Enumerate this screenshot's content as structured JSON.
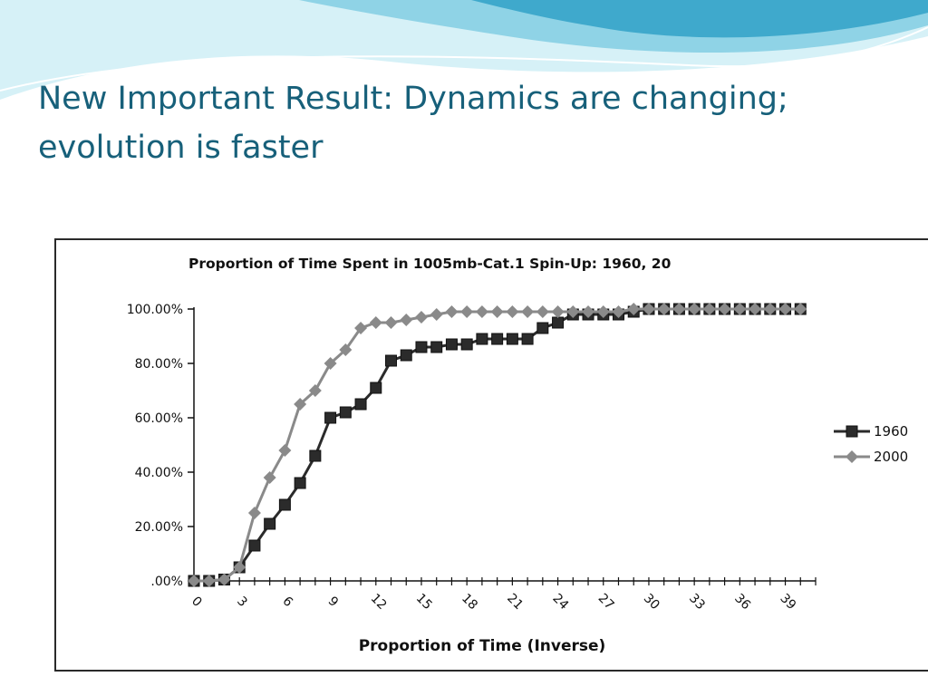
{
  "slide": {
    "title_line1": "New Important Result:  Dynamics are changing;",
    "title_line2": "evolution is faster"
  },
  "colors": {
    "title": "#17607a",
    "banner_light": "#d6f1f7",
    "banner_mid": "#8fd3e6",
    "banner_dark": "#3fa9cc",
    "series_1960": "#2b2b2b",
    "series_2000": "#8a8a8a"
  },
  "chart_data": {
    "type": "line",
    "title": "Proportion of Time Spent in 1005mb-Cat.1 Spin-Up: 1960, 20",
    "xlabel": "Proportion of Time (Inverse)",
    "ylabel": "",
    "xlim": [
      0,
      41
    ],
    "ylim": [
      0,
      100
    ],
    "x_ticks": [
      "0",
      "3",
      "6",
      "9",
      "12",
      "15",
      "18",
      "21",
      "24",
      "27",
      "30",
      "33",
      "36",
      "39"
    ],
    "y_ticks": [
      ".00%",
      "20.00%",
      "40.00%",
      "60.00%",
      "80.00%",
      "100.00%"
    ],
    "legend_position": "right",
    "grid": false,
    "x": [
      0,
      1,
      2,
      3,
      4,
      5,
      6,
      7,
      8,
      9,
      10,
      11,
      12,
      13,
      14,
      15,
      16,
      17,
      18,
      19,
      20,
      21,
      22,
      23,
      24,
      25,
      26,
      27,
      28,
      29,
      30,
      31,
      32,
      33,
      34,
      35,
      36,
      37,
      38,
      39,
      40
    ],
    "series": [
      {
        "name": "1960",
        "marker": "square",
        "values": [
          0,
          0,
          0.5,
          5,
          13,
          21,
          28,
          36,
          46,
          60,
          62,
          65,
          71,
          81,
          83,
          86,
          86,
          87,
          87,
          89,
          89,
          89,
          89,
          93,
          95,
          98,
          98,
          98,
          98,
          99,
          100,
          100,
          100,
          100,
          100,
          100,
          100,
          100,
          100,
          100,
          100
        ]
      },
      {
        "name": "2000",
        "marker": "diamond",
        "values": [
          0,
          0,
          0.5,
          5,
          25,
          38,
          48,
          65,
          70,
          80,
          85,
          93,
          95,
          95,
          96,
          97,
          98,
          99,
          99,
          99,
          99,
          99,
          99,
          99,
          99,
          99,
          99,
          99,
          99,
          100,
          100,
          100,
          100,
          100,
          100,
          100,
          100,
          100,
          100,
          100,
          100
        ]
      }
    ]
  }
}
